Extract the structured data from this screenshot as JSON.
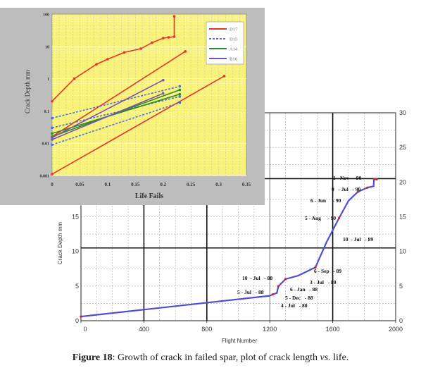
{
  "caption": {
    "label": "Figure 18",
    "text": ": Growth of crack in failed spar, plot of crack length ",
    "vs": "vs.",
    "tail": " life."
  },
  "colors": {
    "red": "#e8322e",
    "blue_dash": "#4f6fd6",
    "green": "#2e8b2e",
    "purple": "#7a52b0",
    "main_line": "#4b4fd0",
    "panel_bg": "#f8f27a",
    "panel_outer": "#b9b9b9"
  },
  "chart_data": [
    {
      "type": "line",
      "title": "",
      "xlabel": "Flight Number",
      "ylabel": "Crack Depth mm",
      "xlim": [
        0,
        2000
      ],
      "ylim": [
        0,
        30
      ],
      "x_ticks": [
        "0",
        "400",
        "800",
        "1200",
        "1600",
        "2000"
      ],
      "y_ticks_left": [
        "0",
        "5",
        "10",
        "15"
      ],
      "y_ticks_right": [
        "0",
        "5",
        "10",
        "15",
        "20",
        "25",
        "30"
      ],
      "grid": "dashed with bold lines at x=400, 800, 1600 and y=10.5, 20.5",
      "series": [
        {
          "x": [
            0,
            1200,
            1220,
            1245,
            1255,
            1265,
            1300,
            1380,
            1490,
            1560,
            1640,
            1700,
            1760,
            1800,
            1820,
            1860,
            1862,
            1880
          ],
          "y": [
            0.6,
            3.6,
            3.8,
            4.0,
            5.0,
            5.2,
            6.0,
            6.5,
            7.7,
            11.3,
            14.8,
            17.3,
            18.6,
            19.0,
            19.2,
            19.4,
            20.4,
            20.4
          ]
        }
      ],
      "annotations": [
        "1 - Nov   - 90",
        "0   - Jul   - 90",
        "6 - Jun     - 90",
        "5 - Aug     - 90",
        "10  - Jul   - 89",
        "6 - Sep   - 89",
        "3 - Jul   - 89",
        "10  - Jul   - 88",
        "5 - Jul   - 88",
        "6 - Jan   - 88",
        "5 - Dec   - 88",
        "4 - Jul   - 88"
      ]
    },
    {
      "type": "line",
      "title": "",
      "xlabel": "Life Fails",
      "ylabel": "Crack Depth mm",
      "y_scale": "log",
      "xlim": [
        0,
        0.35
      ],
      "ylim": [
        0.001,
        100
      ],
      "x_ticks": [
        "0",
        "0.05",
        "0.1",
        "0.15",
        "0.2",
        "0.25",
        "0.3",
        "0.35"
      ],
      "y_ticks": [
        "0.001",
        "0.01",
        "0.1",
        "1",
        "10",
        "100"
      ],
      "legend_position": "top-right",
      "series": [
        {
          "name": "D17",
          "style": "red solid",
          "x": [
            0.0,
            0.04,
            0.08,
            0.1,
            0.13,
            0.16,
            0.18,
            0.2,
            0.21,
            0.22,
            0.22
          ],
          "y": [
            0.2,
            1.0,
            2.8,
            4.0,
            6.5,
            8.5,
            13,
            18,
            19,
            20,
            85
          ]
        },
        {
          "name": "D17",
          "style": "red solid",
          "x": [
            0.0,
            0.24
          ],
          "y": [
            0.016,
            7.0
          ]
        },
        {
          "name": "D17",
          "style": "red solid",
          "x": [
            0.0,
            0.31
          ],
          "y": [
            0.0011,
            1.2
          ]
        },
        {
          "name": "D15",
          "style": "blue dashed",
          "x": [
            0.0,
            0.23
          ],
          "y": [
            0.06,
            0.58
          ]
        },
        {
          "name": "D15",
          "style": "blue dashed",
          "x": [
            0.0,
            0.23
          ],
          "y": [
            0.03,
            0.28
          ]
        },
        {
          "name": "D15",
          "style": "blue dashed",
          "x": [
            0.0,
            0.23
          ],
          "y": [
            0.009,
            0.18
          ]
        },
        {
          "name": "A14",
          "style": "green solid",
          "x": [
            0.0,
            0.23
          ],
          "y": [
            0.016,
            0.45
          ]
        },
        {
          "name": "A14",
          "style": "green solid",
          "x": [
            0.0,
            0.23
          ],
          "y": [
            0.02,
            0.33
          ]
        },
        {
          "name": "B16",
          "style": "purple solid",
          "x": [
            0.0,
            0.2
          ],
          "y": [
            0.015,
            0.9
          ]
        },
        {
          "name": "B16",
          "style": "purple solid",
          "x": [
            0.0,
            0.2
          ],
          "y": [
            0.013,
            0.35
          ]
        }
      ]
    }
  ]
}
